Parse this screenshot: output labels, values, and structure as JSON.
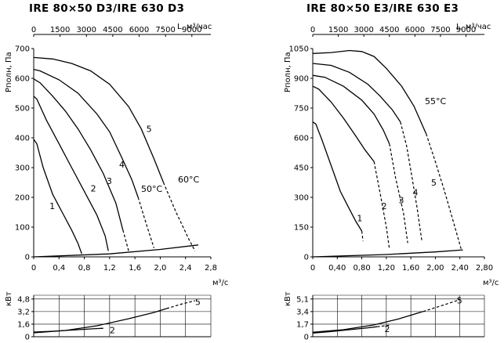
{
  "charts": [
    {
      "title": "IRE 80×50 D3/IRE 630 D3",
      "top_axis_label": "L, м³/час",
      "top_ticks": [
        "0",
        "1500",
        "3000",
        "4500",
        "6000",
        "7500",
        "9000"
      ],
      "ylabel": "Pполн, Па",
      "y_ticks": [
        "0",
        "100",
        "200",
        "300",
        "400",
        "500",
        "600",
        "700"
      ],
      "x_ticks": [
        "0",
        "0,4",
        "0,8",
        "1,2",
        "1,6",
        "2,0",
        "2,4",
        "2,8"
      ],
      "xlabel": "м³/с",
      "power_ylabel": "кВт",
      "power_ticks": [
        "0",
        "1,6",
        "3,2",
        "4,8"
      ],
      "temp_label_low": "50°C",
      "temp_label_high": "60°C",
      "curve_labels": [
        "1",
        "2",
        "3",
        "4",
        "5"
      ],
      "power_labels": [
        "2",
        "5"
      ]
    },
    {
      "title": "IRE 80×50 E3/IRE 630 E3",
      "top_axis_label": "L, м³/час",
      "top_ticks": [
        "0",
        "1500",
        "3000",
        "4500",
        "6000",
        "7500",
        "9000"
      ],
      "ylabel": "Pполн, Па",
      "y_ticks": [
        "0",
        "150",
        "300",
        "450",
        "600",
        "750",
        "900",
        "1050"
      ],
      "x_ticks": [
        "0",
        "0,40",
        "0,80",
        "1,20",
        "1,60",
        "2,00",
        "2,40",
        "2,80"
      ],
      "xlabel": "м³/с",
      "power_ylabel": "кВт",
      "power_ticks": [
        "0",
        "1,7",
        "3,4",
        "5,1"
      ],
      "temp_label_high": "55°C",
      "curve_labels": [
        "1",
        "2",
        "3",
        "4",
        "5"
      ],
      "power_labels": [
        "2",
        "5"
      ]
    }
  ],
  "chart_data": [
    {
      "type": "line",
      "title": "IRE 80×50 D3/IRE 630 D3",
      "xlabel": "м³/с",
      "ylabel": "Pполн, Па",
      "xlim": [
        0,
        2.8
      ],
      "ylim": [
        0,
        700
      ],
      "x_secondary": {
        "label": "L, м³/час",
        "lim": [
          0,
          10080
        ]
      },
      "series": [
        {
          "name": "1",
          "solid": [
            [
              0,
              395
            ],
            [
              0.05,
              380
            ],
            [
              0.15,
              300
            ],
            [
              0.3,
              210
            ],
            [
              0.45,
              150
            ],
            [
              0.6,
              90
            ],
            [
              0.7,
              45
            ],
            [
              0.76,
              10
            ]
          ],
          "dashed": []
        },
        {
          "name": "2",
          "solid": [
            [
              0,
              540
            ],
            [
              0.05,
              530
            ],
            [
              0.2,
              460
            ],
            [
              0.4,
              380
            ],
            [
              0.6,
              300
            ],
            [
              0.8,
              220
            ],
            [
              1.0,
              140
            ],
            [
              1.13,
              70
            ],
            [
              1.18,
              20
            ]
          ],
          "dashed": []
        },
        {
          "name": "3",
          "solid": [
            [
              0,
              598
            ],
            [
              0.1,
              585
            ],
            [
              0.3,
              540
            ],
            [
              0.5,
              490
            ],
            [
              0.7,
              430
            ],
            [
              0.9,
              360
            ],
            [
              1.1,
              280
            ],
            [
              1.3,
              180
            ],
            [
              1.41,
              90
            ]
          ],
          "dashed": [
            [
              1.41,
              90
            ],
            [
              1.5,
              20
            ]
          ]
        },
        {
          "name": "4",
          "solid": [
            [
              0,
              630
            ],
            [
              0.1,
              625
            ],
            [
              0.4,
              595
            ],
            [
              0.7,
              550
            ],
            [
              1.0,
              480
            ],
            [
              1.2,
              420
            ],
            [
              1.4,
              330
            ],
            [
              1.55,
              260
            ],
            [
              1.65,
              200
            ]
          ],
          "dashed": [
            [
              1.65,
              200
            ],
            [
              1.78,
              110
            ],
            [
              1.9,
              30
            ]
          ]
        },
        {
          "name": "5",
          "solid": [
            [
              0,
              670
            ],
            [
              0.3,
              665
            ],
            [
              0.6,
              650
            ],
            [
              0.9,
              625
            ],
            [
              1.2,
              580
            ],
            [
              1.5,
              505
            ],
            [
              1.7,
              430
            ],
            [
              1.9,
              330
            ],
            [
              2.05,
              250
            ]
          ],
          "dashed": [
            [
              2.05,
              250
            ],
            [
              2.25,
              150
            ],
            [
              2.45,
              60
            ],
            [
              2.55,
              20
            ]
          ]
        }
      ],
      "system_curve": [
        [
          0,
          0
        ],
        [
          1.2,
          10
        ],
        [
          2.0,
          25
        ],
        [
          2.6,
          40
        ]
      ],
      "power": {
        "ylabel": "кВт",
        "ylim": [
          0,
          5.3
        ],
        "series": [
          {
            "name": "2",
            "solid": [
              [
                0,
                0.6
              ],
              [
                0.3,
                0.7
              ],
              [
                0.6,
                0.85
              ],
              [
                0.9,
                1.0
              ],
              [
                1.1,
                1.08
              ]
            ],
            "dashed": []
          },
          {
            "name": "5",
            "solid": [
              [
                0,
                0.5
              ],
              [
                0.5,
                0.8
              ],
              [
                1.0,
                1.4
              ],
              [
                1.5,
                2.3
              ],
              [
                1.9,
                3.1
              ],
              [
                2.1,
                3.6
              ]
            ],
            "dashed": [
              [
                2.1,
                3.6
              ],
              [
                2.35,
                4.2
              ],
              [
                2.55,
                4.6
              ]
            ]
          }
        ]
      }
    },
    {
      "type": "line",
      "title": "IRE 80×50 E3/IRE 630 E3",
      "xlabel": "м³/с",
      "ylabel": "Pполн, Па",
      "xlim": [
        0,
        2.8
      ],
      "ylim": [
        0,
        1050
      ],
      "x_secondary": {
        "label": "L, м³/час",
        "lim": [
          0,
          10080
        ]
      },
      "series": [
        {
          "name": "1",
          "solid": [
            [
              0,
              680
            ],
            [
              0.05,
              670
            ],
            [
              0.15,
              590
            ],
            [
              0.3,
              460
            ],
            [
              0.45,
              330
            ],
            [
              0.6,
              240
            ],
            [
              0.7,
              180
            ],
            [
              0.8,
              130
            ]
          ],
          "dashed": [
            [
              0.8,
              130
            ],
            [
              0.82,
              80
            ]
          ]
        },
        {
          "name": "2",
          "solid": [
            [
              0,
              860
            ],
            [
              0.1,
              845
            ],
            [
              0.3,
              780
            ],
            [
              0.5,
              700
            ],
            [
              0.7,
              610
            ],
            [
              0.85,
              540
            ],
            [
              1.0,
              480
            ]
          ],
          "dashed": [
            [
              1.0,
              480
            ],
            [
              1.1,
              320
            ],
            [
              1.2,
              150
            ],
            [
              1.25,
              40
            ]
          ]
        },
        {
          "name": "3",
          "solid": [
            [
              0,
              915
            ],
            [
              0.2,
              905
            ],
            [
              0.5,
              860
            ],
            [
              0.8,
              790
            ],
            [
              1.0,
              720
            ],
            [
              1.15,
              640
            ],
            [
              1.25,
              570
            ]
          ],
          "dashed": [
            [
              1.25,
              570
            ],
            [
              1.35,
              400
            ],
            [
              1.48,
              220
            ],
            [
              1.55,
              70
            ]
          ]
        },
        {
          "name": "4",
          "solid": [
            [
              0,
              975
            ],
            [
              0.3,
              965
            ],
            [
              0.6,
              930
            ],
            [
              0.9,
              870
            ],
            [
              1.1,
              810
            ],
            [
              1.3,
              740
            ],
            [
              1.43,
              680
            ]
          ],
          "dashed": [
            [
              1.43,
              680
            ],
            [
              1.53,
              560
            ],
            [
              1.62,
              400
            ],
            [
              1.7,
              250
            ],
            [
              1.78,
              80
            ]
          ]
        },
        {
          "name": "5",
          "solid": [
            [
              0,
              1025
            ],
            [
              0.3,
              1030
            ],
            [
              0.6,
              1040
            ],
            [
              0.8,
              1035
            ],
            [
              1.0,
              1010
            ],
            [
              1.2,
              950
            ],
            [
              1.45,
              860
            ],
            [
              1.65,
              760
            ],
            [
              1.85,
              620
            ]
          ],
          "dashed": [
            [
              1.85,
              620
            ],
            [
              2.0,
              480
            ],
            [
              2.15,
              330
            ],
            [
              2.3,
              170
            ],
            [
              2.42,
              40
            ]
          ]
        }
      ],
      "system_curve": [
        [
          0,
          0
        ],
        [
          1.2,
          12
        ],
        [
          2.0,
          25
        ],
        [
          2.45,
          35
        ]
      ],
      "power": {
        "ylabel": "кВт",
        "ylim": [
          0,
          5.6
        ],
        "series": [
          {
            "name": "2",
            "solid": [
              [
                0,
                0.5
              ],
              [
                0.3,
                0.7
              ],
              [
                0.6,
                0.95
              ],
              [
                0.9,
                1.2
              ],
              [
                1.05,
                1.35
              ]
            ],
            "dashed": [
              [
                1.05,
                1.35
              ],
              [
                1.25,
                1.55
              ]
            ]
          },
          {
            "name": "5",
            "solid": [
              [
                0,
                0.6
              ],
              [
                0.5,
                0.95
              ],
              [
                1.0,
                1.6
              ],
              [
                1.4,
                2.4
              ],
              [
                1.8,
                3.4
              ]
            ],
            "dashed": [
              [
                1.8,
                3.4
              ],
              [
                2.1,
                4.2
              ],
              [
                2.4,
                5.0
              ]
            ]
          }
        ]
      }
    }
  ]
}
